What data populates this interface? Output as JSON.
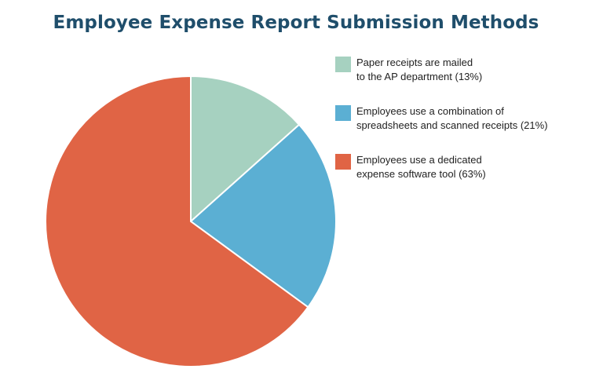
{
  "chart_data": {
    "type": "pie",
    "title": "Employee Expense Report Submission Methods",
    "slices": [
      {
        "label_lines": [
          "Paper receipts are mailed",
          "to the AP department (13%)"
        ],
        "value": 13,
        "color": "#a6d1c0"
      },
      {
        "label_lines": [
          "Employees use a combination of",
          "spreadsheets and scanned receipts (21%)"
        ],
        "value": 21,
        "color": "#5bafd3"
      },
      {
        "label_lines": [
          "Employees use a dedicated",
          "expense software tool (63%)"
        ],
        "value": 63,
        "color": "#e06445"
      }
    ],
    "legend_position": "right"
  }
}
